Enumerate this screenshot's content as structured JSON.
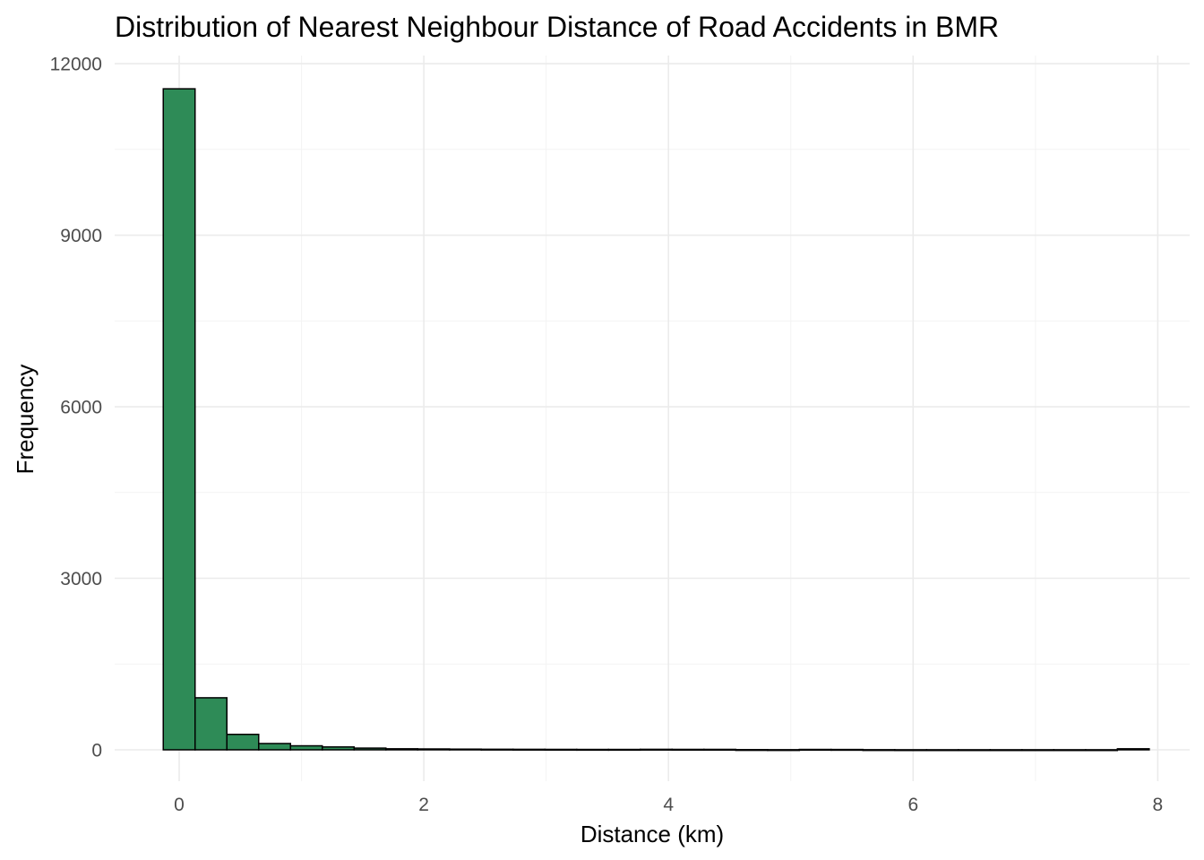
{
  "chart_data": {
    "type": "bar",
    "subtype": "histogram",
    "title": "Distribution of Nearest Neighbour Distance of Road Accidents in BMR",
    "xlabel": "Distance (km)",
    "ylabel": "Frequency",
    "xlim": [
      -0.2,
      8.0
    ],
    "ylim": [
      -500,
      12150
    ],
    "x_ticks": [
      0,
      2,
      4,
      6,
      8
    ],
    "y_ticks": [
      0,
      3000,
      6000,
      9000,
      12000
    ],
    "bin_width": 0.26,
    "bin_start": -0.13,
    "bins": [
      {
        "x0": -0.13,
        "x1": 0.13,
        "count": 11560
      },
      {
        "x0": 0.13,
        "x1": 0.39,
        "count": 910
      },
      {
        "x0": 0.39,
        "x1": 0.65,
        "count": 270
      },
      {
        "x0": 0.65,
        "x1": 0.91,
        "count": 110
      },
      {
        "x0": 0.91,
        "x1": 1.17,
        "count": 70
      },
      {
        "x0": 1.17,
        "x1": 1.43,
        "count": 50
      },
      {
        "x0": 1.43,
        "x1": 1.69,
        "count": 30
      },
      {
        "x0": 1.69,
        "x1": 1.95,
        "count": 18
      },
      {
        "x0": 1.95,
        "x1": 2.21,
        "count": 15
      },
      {
        "x0": 2.21,
        "x1": 2.47,
        "count": 12
      },
      {
        "x0": 2.47,
        "x1": 2.73,
        "count": 10
      },
      {
        "x0": 2.73,
        "x1": 2.99,
        "count": 9
      },
      {
        "x0": 2.99,
        "x1": 3.25,
        "count": 8
      },
      {
        "x0": 3.25,
        "x1": 3.51,
        "count": 7
      },
      {
        "x0": 3.51,
        "x1": 3.77,
        "count": 7
      },
      {
        "x0": 3.77,
        "x1": 4.03,
        "count": 9
      },
      {
        "x0": 4.03,
        "x1": 4.29,
        "count": 8
      },
      {
        "x0": 4.29,
        "x1": 4.55,
        "count": 8
      },
      {
        "x0": 4.55,
        "x1": 4.81,
        "count": 3
      },
      {
        "x0": 4.81,
        "x1": 5.07,
        "count": 2
      },
      {
        "x0": 5.07,
        "x1": 5.33,
        "count": 7
      },
      {
        "x0": 5.33,
        "x1": 5.59,
        "count": 6
      },
      {
        "x0": 5.59,
        "x1": 5.85,
        "count": 2
      },
      {
        "x0": 5.85,
        "x1": 6.11,
        "count": 1
      },
      {
        "x0": 6.11,
        "x1": 6.37,
        "count": 1
      },
      {
        "x0": 6.37,
        "x1": 6.63,
        "count": 1
      },
      {
        "x0": 6.63,
        "x1": 6.89,
        "count": 1
      },
      {
        "x0": 6.89,
        "x1": 7.15,
        "count": 1
      },
      {
        "x0": 7.15,
        "x1": 7.41,
        "count": 1
      },
      {
        "x0": 7.41,
        "x1": 7.67,
        "count": 1
      },
      {
        "x0": 7.67,
        "x1": 7.93,
        "count": 18
      }
    ],
    "bar_fill": "#2e8b57",
    "bar_outline": "#000000",
    "grid": true,
    "legend": "none"
  }
}
